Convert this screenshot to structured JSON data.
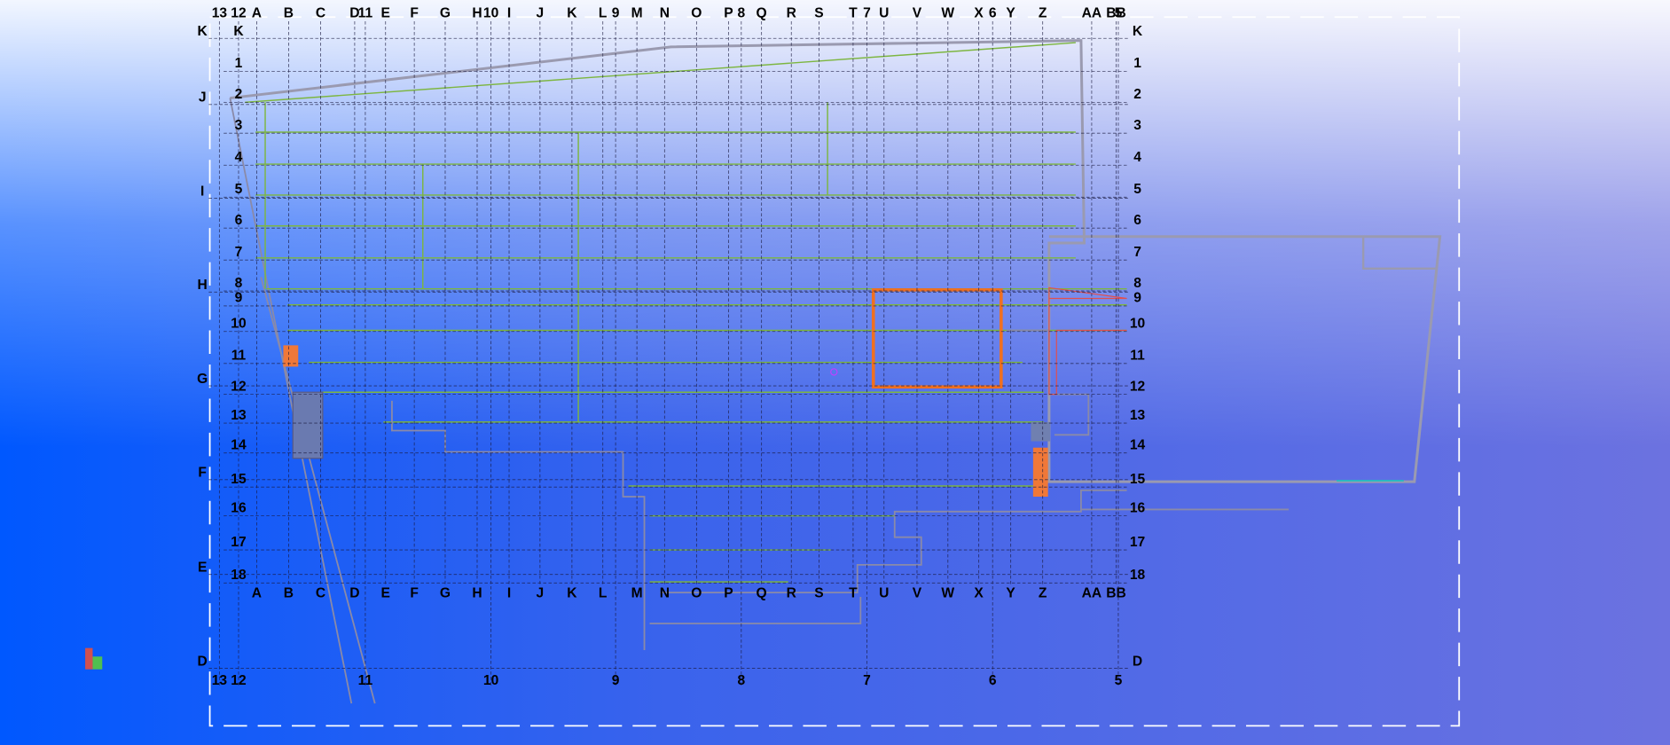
{
  "column_grid": {
    "letters": [
      "A",
      "B",
      "C",
      "D",
      "E",
      "F",
      "G",
      "H",
      "I",
      "J",
      "K",
      "L",
      "M",
      "N",
      "O",
      "P",
      "Q",
      "R",
      "S",
      "T",
      "U",
      "V",
      "W",
      "X",
      "Y",
      "Z",
      "AA",
      "BB"
    ],
    "numbers": [
      "13",
      "12",
      "11",
      "10",
      "9",
      "8",
      "7",
      "6",
      "5"
    ]
  },
  "row_grid": {
    "numbers": [
      "1",
      "2",
      "3",
      "4",
      "5",
      "6",
      "7",
      "8",
      "9",
      "10",
      "11",
      "12",
      "13",
      "14",
      "15",
      "16",
      "17",
      "18"
    ],
    "letters": [
      "K",
      "J",
      "I",
      "H",
      "G",
      "F",
      "E",
      "D"
    ]
  }
}
